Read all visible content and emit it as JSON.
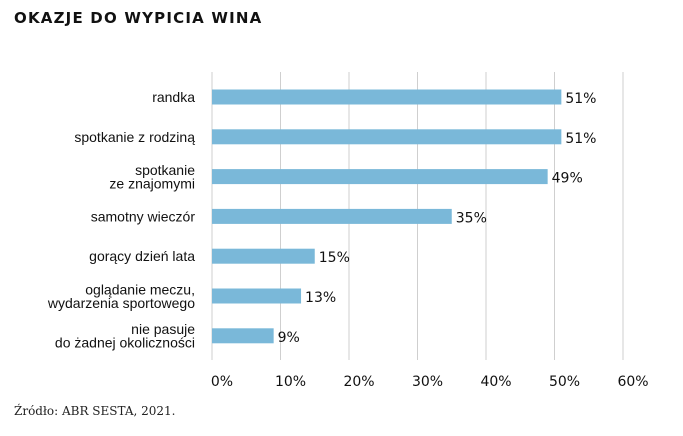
{
  "chart_data": {
    "type": "bar",
    "orientation": "horizontal",
    "title": "OKAZJE DO WYPICIA WINA",
    "categories": [
      [
        "randka"
      ],
      [
        "spotkanie z rodziną"
      ],
      [
        "spotkanie",
        "ze znajomymi"
      ],
      [
        "samotny wieczór"
      ],
      [
        "gorący dzień lata"
      ],
      [
        "oglądanie meczu,",
        "wydarzenia sportowego"
      ],
      [
        "nie pasuje",
        "do żadnej okoliczności"
      ]
    ],
    "values": [
      51,
      51,
      49,
      35,
      15,
      13,
      9
    ],
    "value_labels": [
      "51%",
      "51%",
      "49%",
      "35%",
      "15%",
      "13%",
      "9%"
    ],
    "x_ticks": [
      0,
      10,
      20,
      30,
      40,
      50,
      60
    ],
    "x_tick_labels": [
      "0%",
      "10%",
      "20%",
      "30%",
      "40%",
      "50%",
      "60%"
    ],
    "xlim": [
      0,
      60
    ],
    "grid": "vertical-lines",
    "bar_color": "#7ab8d9"
  },
  "source": "Źródło: ABR SESTA, 2021."
}
